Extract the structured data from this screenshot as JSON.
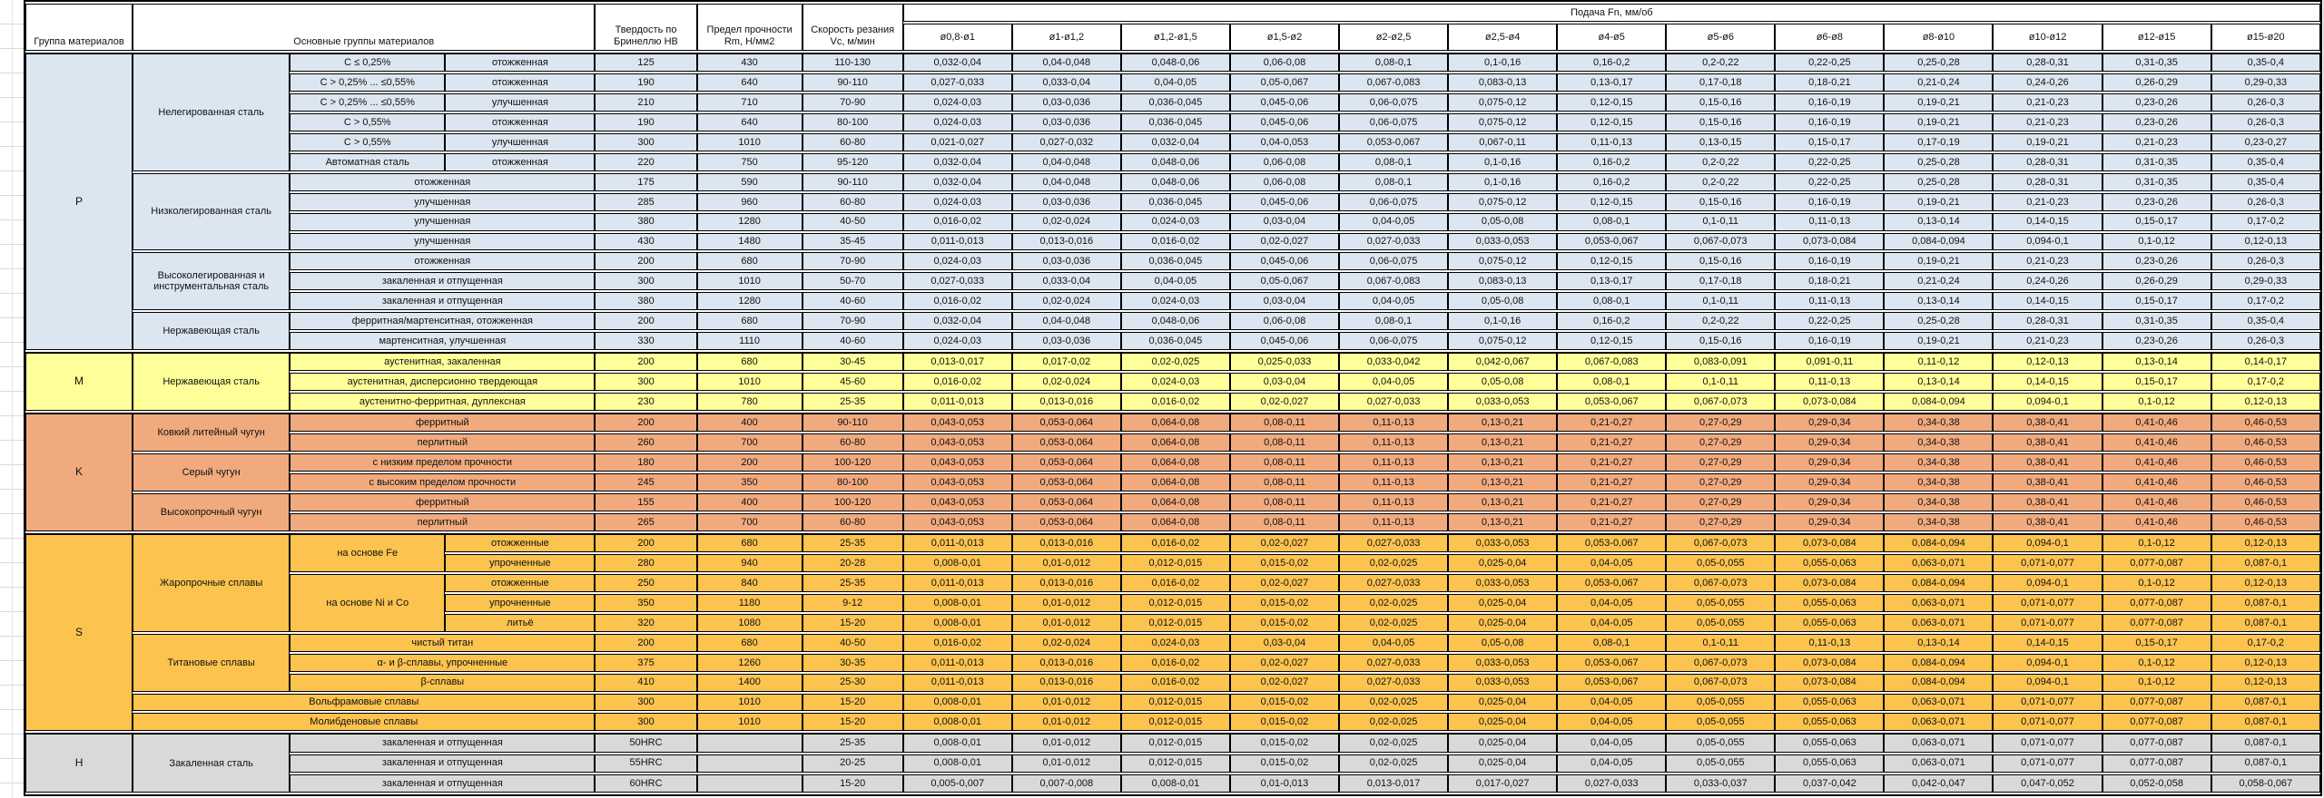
{
  "header": {
    "col_group": "Группа материалов",
    "col_main": "Основные группы материалов",
    "col_hardness": "Твердость по Бринеллю HB",
    "col_strength": "Предел прочности Rm, Н/мм2",
    "col_speed": "Скорость резания Vc, м/мин",
    "feed_title": "Подача Fn, мм/об",
    "feed_cols": [
      "ø0,8-ø1",
      "ø1-ø1,2",
      "ø1,2-ø1,5",
      "ø1,5-ø2",
      "ø2-ø2,5",
      "ø2,5-ø4",
      "ø4-ø5",
      "ø5-ø6",
      "ø6-ø8",
      "ø8-ø10",
      "ø10-ø12",
      "ø12-ø15",
      "ø15-ø20"
    ]
  },
  "feed_patterns": {
    "A": [
      "0,032-0,04",
      "0,04-0,048",
      "0,048-0,06",
      "0,06-0,08",
      "0,08-0,1",
      "0,1-0,16",
      "0,16-0,2",
      "0,2-0,22",
      "0,22-0,25",
      "0,25-0,28",
      "0,28-0,31",
      "0,31-0,35",
      "0,35-0,4"
    ],
    "B": [
      "0,027-0,033",
      "0,033-0,04",
      "0,04-0,05",
      "0,05-0,067",
      "0,067-0,083",
      "0,083-0,13",
      "0,13-0,17",
      "0,17-0,18",
      "0,18-0,21",
      "0,21-0,24",
      "0,24-0,26",
      "0,26-0,29",
      "0,29-0,33"
    ],
    "C": [
      "0,024-0,03",
      "0,03-0,036",
      "0,036-0,045",
      "0,045-0,06",
      "0,06-0,075",
      "0,075-0,12",
      "0,12-0,15",
      "0,15-0,16",
      "0,16-0,19",
      "0,19-0,21",
      "0,21-0,23",
      "0,23-0,26",
      "0,26-0,3"
    ],
    "D": [
      "0,021-0,027",
      "0,027-0,032",
      "0,032-0,04",
      "0,04-0,053",
      "0,053-0,067",
      "0,067-0,11",
      "0,11-0,13",
      "0,13-0,15",
      "0,15-0,17",
      "0,17-0,19",
      "0,19-0,21",
      "0,21-0,23",
      "0,23-0,27"
    ],
    "E": [
      "0,016-0,02",
      "0,02-0,024",
      "0,024-0,03",
      "0,03-0,04",
      "0,04-0,05",
      "0,05-0,08",
      "0,08-0,1",
      "0,1-0,11",
      "0,11-0,13",
      "0,13-0,14",
      "0,14-0,15",
      "0,15-0,17",
      "0,17-0,2"
    ],
    "F": [
      "0,011-0,013",
      "0,013-0,016",
      "0,016-0,02",
      "0,02-0,027",
      "0,027-0,033",
      "0,033-0,053",
      "0,053-0,067",
      "0,067-0,073",
      "0,073-0,084",
      "0,084-0,094",
      "0,094-0,1",
      "0,1-0,12",
      "0,12-0,13"
    ],
    "G": [
      "0,013-0,017",
      "0,017-0,02",
      "0,02-0,025",
      "0,025-0,033",
      "0,033-0,042",
      "0,042-0,067",
      "0,067-0,083",
      "0,083-0,091",
      "0,091-0,11",
      "0,11-0,12",
      "0,12-0,13",
      "0,13-0,14",
      "0,14-0,17"
    ],
    "K": [
      "0,043-0,053",
      "0,053-0,064",
      "0,064-0,08",
      "0,08-0,11",
      "0,11-0,13",
      "0,13-0,21",
      "0,21-0,27",
      "0,27-0,29",
      "0,29-0,34",
      "0,34-0,38",
      "0,38-0,41",
      "0,41-0,46",
      "0,46-0,53"
    ],
    "S": [
      "0,008-0,01",
      "0,01-0,012",
      "0,012-0,015",
      "0,015-0,02",
      "0,02-0,025",
      "0,025-0,04",
      "0,04-0,05",
      "0,05-0,055",
      "0,055-0,063",
      "0,063-0,071",
      "0,071-0,077",
      "0,077-0,087",
      "0,087-0,1"
    ],
    "Z": [
      "0,005-0,007",
      "0,007-0,008",
      "0,008-0,01",
      "0,01-0,013",
      "0,013-0,017",
      "0,017-0,027",
      "0,027-0,033",
      "0,033-0,037",
      "0,037-0,042",
      "0,042-0,047",
      "0,047-0,052",
      "0,052-0,058",
      "0,058-0,067"
    ]
  },
  "table": {
    "groups": [
      {
        "code": "P",
        "bg": "#dce6f1",
        "rows": [
          {
            "labels": [
              {
                "t": "Нелегированная сталь",
                "rs": 6
              },
              {
                "t": "C ≤ 0,25%"
              },
              {
                "t": "отожженная"
              }
            ],
            "hb": "125",
            "rm": "430",
            "vc": "110-130",
            "feed": "A"
          },
          {
            "labels": [
              {
                "t": "C > 0,25% ... ≤0,55%"
              },
              {
                "t": "отожженная"
              }
            ],
            "hb": "190",
            "rm": "640",
            "vc": "90-110",
            "feed": "B"
          },
          {
            "labels": [
              {
                "t": "C > 0,25% ... ≤0,55%"
              },
              {
                "t": "улучшенная"
              }
            ],
            "hb": "210",
            "rm": "710",
            "vc": "70-90",
            "feed": "C"
          },
          {
            "labels": [
              {
                "t": "C > 0,55%"
              },
              {
                "t": "отожженная"
              }
            ],
            "hb": "190",
            "rm": "640",
            "vc": "80-100",
            "feed": "C"
          },
          {
            "labels": [
              {
                "t": "C > 0,55%"
              },
              {
                "t": "улучшенная"
              }
            ],
            "hb": "300",
            "rm": "1010",
            "vc": "60-80",
            "feed": "D"
          },
          {
            "labels": [
              {
                "t": "Автоматная сталь"
              },
              {
                "t": "отожженная"
              }
            ],
            "hb": "220",
            "rm": "750",
            "vc": "95-120",
            "feed": "A"
          },
          {
            "labels": [
              {
                "t": "Низколегированная сталь",
                "rs": 4
              },
              {
                "t": "отожженная",
                "cs": 2
              }
            ],
            "hb": "175",
            "rm": "590",
            "vc": "90-110",
            "feed": "A"
          },
          {
            "labels": [
              {
                "t": "улучшенная",
                "cs": 2
              }
            ],
            "hb": "285",
            "rm": "960",
            "vc": "60-80",
            "feed": "C"
          },
          {
            "labels": [
              {
                "t": "улучшенная",
                "cs": 2
              }
            ],
            "hb": "380",
            "rm": "1280",
            "vc": "40-50",
            "feed": "E"
          },
          {
            "labels": [
              {
                "t": "улучшенная",
                "cs": 2
              }
            ],
            "hb": "430",
            "rm": "1480",
            "vc": "35-45",
            "feed": "F"
          },
          {
            "labels": [
              {
                "t": "Высоколегированная и инструментальная сталь",
                "rs": 3
              },
              {
                "t": "отожженная",
                "cs": 2
              }
            ],
            "hb": "200",
            "rm": "680",
            "vc": "70-90",
            "feed": "C"
          },
          {
            "labels": [
              {
                "t": "закаленная и отпущенная",
                "cs": 2
              }
            ],
            "hb": "300",
            "rm": "1010",
            "vc": "50-70",
            "feed": "B"
          },
          {
            "labels": [
              {
                "t": "закаленная и отпущенная",
                "cs": 2
              }
            ],
            "hb": "380",
            "rm": "1280",
            "vc": "40-60",
            "feed": "E"
          },
          {
            "labels": [
              {
                "t": "Нержавеющая сталь",
                "rs": 2
              },
              {
                "t": "ферритная/мартенситная, отожженная",
                "cs": 2
              }
            ],
            "hb": "200",
            "rm": "680",
            "vc": "70-90",
            "feed": "A"
          },
          {
            "labels": [
              {
                "t": "мартенситная, улучшенная",
                "cs": 2
              }
            ],
            "hb": "330",
            "rm": "1110",
            "vc": "40-60",
            "feed": "C"
          }
        ]
      },
      {
        "code": "M",
        "bg": "#ffff99",
        "rows": [
          {
            "labels": [
              {
                "t": "Нержавеющая сталь",
                "rs": 3
              },
              {
                "t": "аустенитная, закаленная",
                "cs": 2
              }
            ],
            "hb": "200",
            "rm": "680",
            "vc": "30-45",
            "feed": "G"
          },
          {
            "labels": [
              {
                "t": "аустенитная, дисперсионно твердеющая",
                "cs": 2
              }
            ],
            "hb": "300",
            "rm": "1010",
            "vc": "45-60",
            "feed": "E"
          },
          {
            "labels": [
              {
                "t": "аустенитно-ферритная, дуплексная",
                "cs": 2
              }
            ],
            "hb": "230",
            "rm": "780",
            "vc": "25-35",
            "feed": "F"
          }
        ]
      },
      {
        "code": "K",
        "bg": "#f1aa7e",
        "rows": [
          {
            "labels": [
              {
                "t": "Ковкий литейный чугун",
                "rs": 2
              },
              {
                "t": "ферритный",
                "cs": 2
              }
            ],
            "hb": "200",
            "rm": "400",
            "vc": "90-110",
            "feed": "K"
          },
          {
            "labels": [
              {
                "t": "перлитный",
                "cs": 2
              }
            ],
            "hb": "260",
            "rm": "700",
            "vc": "60-80",
            "feed": "K"
          },
          {
            "labels": [
              {
                "t": "Серый чугун",
                "rs": 2
              },
              {
                "t": "с низким пределом прочности",
                "cs": 2
              }
            ],
            "hb": "180",
            "rm": "200",
            "vc": "100-120",
            "feed": "K"
          },
          {
            "labels": [
              {
                "t": "с высоким пределом прочности",
                "cs": 2
              }
            ],
            "hb": "245",
            "rm": "350",
            "vc": "80-100",
            "feed": "K"
          },
          {
            "labels": [
              {
                "t": "Высокопрочный чугун",
                "rs": 2
              },
              {
                "t": "ферритный",
                "cs": 2
              }
            ],
            "hb": "155",
            "rm": "400",
            "vc": "100-120",
            "feed": "K"
          },
          {
            "labels": [
              {
                "t": "перлитный",
                "cs": 2
              }
            ],
            "hb": "265",
            "rm": "700",
            "vc": "60-80",
            "feed": "K"
          }
        ]
      },
      {
        "code": "S",
        "bg": "#fcc34f",
        "rows": [
          {
            "labels": [
              {
                "t": "Жаропрочные сплавы",
                "rs": 5
              },
              {
                "t": "на основе Fe",
                "rs": 2
              },
              {
                "t": "отожженные"
              }
            ],
            "hb": "200",
            "rm": "680",
            "vc": "25-35",
            "feed": "F"
          },
          {
            "labels": [
              {
                "t": "упрочненные"
              }
            ],
            "hb": "280",
            "rm": "940",
            "vc": "20-28",
            "feed": "S"
          },
          {
            "labels": [
              {
                "t": "на основе Ni и Co",
                "rs": 3
              },
              {
                "t": "отожженные"
              }
            ],
            "hb": "250",
            "rm": "840",
            "vc": "25-35",
            "feed": "F"
          },
          {
            "labels": [
              {
                "t": "упрочненные"
              }
            ],
            "hb": "350",
            "rm": "1180",
            "vc": "9-12",
            "feed": "S"
          },
          {
            "labels": [
              {
                "t": "литьё"
              }
            ],
            "hb": "320",
            "rm": "1080",
            "vc": "15-20",
            "feed": "S"
          },
          {
            "labels": [
              {
                "t": "Титановые сплавы",
                "rs": 3
              },
              {
                "t": "чистый титан",
                "cs": 2
              }
            ],
            "hb": "200",
            "rm": "680",
            "vc": "40-50",
            "feed": "E"
          },
          {
            "labels": [
              {
                "t": "α- и β-сплавы, упрочненные",
                "cs": 2
              }
            ],
            "hb": "375",
            "rm": "1260",
            "vc": "30-35",
            "feed": "F"
          },
          {
            "labels": [
              {
                "t": "β-сплавы",
                "cs": 2
              }
            ],
            "hb": "410",
            "rm": "1400",
            "vc": "25-30",
            "feed": "F"
          },
          {
            "labels": [
              {
                "t": "Вольфрамовые сплавы",
                "cs": 3
              }
            ],
            "hb": "300",
            "rm": "1010",
            "vc": "15-20",
            "feed": "S"
          },
          {
            "labels": [
              {
                "t": "Молибденовые сплавы",
                "cs": 3
              }
            ],
            "hb": "300",
            "rm": "1010",
            "vc": "15-20",
            "feed": "S"
          }
        ]
      },
      {
        "code": "H",
        "bg": "#d9d9d9",
        "rows": [
          {
            "labels": [
              {
                "t": "Закаленная сталь",
                "rs": 3
              },
              {
                "t": "закаленная и отпущенная",
                "cs": 2
              }
            ],
            "hb": "50HRC",
            "rm": "",
            "vc": "25-35",
            "feed": "S"
          },
          {
            "labels": [
              {
                "t": "закаленная и отпущенная",
                "cs": 2
              }
            ],
            "hb": "55HRC",
            "rm": "",
            "vc": "20-25",
            "feed": "S"
          },
          {
            "labels": [
              {
                "t": "закаленная и отпущенная",
                "cs": 2
              }
            ],
            "hb": "60HRC",
            "rm": "",
            "vc": "15-20",
            "feed": "Z"
          }
        ]
      }
    ]
  }
}
